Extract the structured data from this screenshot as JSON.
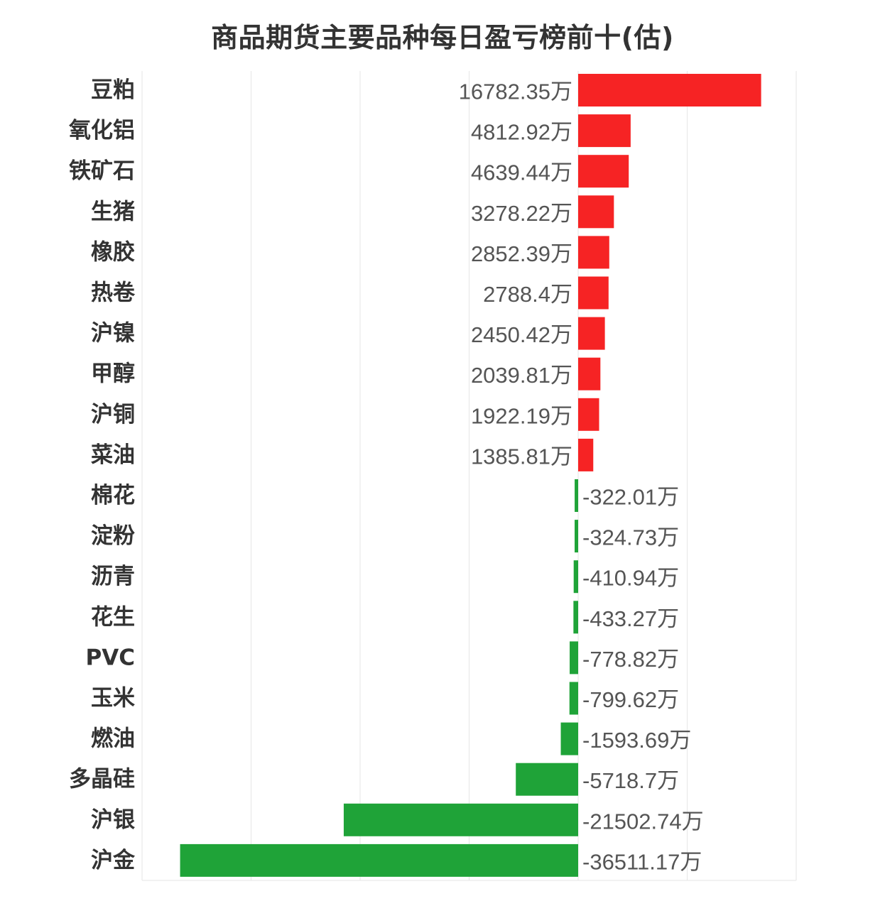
{
  "chart_data": {
    "type": "bar",
    "orientation": "horizontal",
    "title": "商品期货主要品种每日盈亏榜前十(估)",
    "unit": "万",
    "categories": [
      "豆粕",
      "氧化铝",
      "铁矿石",
      "生猪",
      "橡胶",
      "热卷",
      "沪镍",
      "甲醇",
      "沪铜",
      "菜油",
      "棉花",
      "淀粉",
      "沥青",
      "花生",
      "PVC",
      "玉米",
      "燃油",
      "多晶硅",
      "沪银",
      "沪金"
    ],
    "values": [
      16782.35,
      4812.92,
      4639.44,
      3278.22,
      2852.39,
      2788.4,
      2450.42,
      2039.81,
      1922.19,
      1385.81,
      -322.01,
      -324.73,
      -410.94,
      -433.27,
      -778.82,
      -799.62,
      -1593.69,
      -5718.7,
      -21502.74,
      -36511.17
    ],
    "value_labels": [
      "16782.35万",
      "4812.92万",
      "4639.44万",
      "3278.22万",
      "2852.39万",
      "2788.4万",
      "2450.42万",
      "2039.81万",
      "1922.19万",
      "1385.81万",
      "-322.01万",
      "-324.73万",
      "-410.94万",
      "-433.27万",
      "-778.82万",
      "-799.62万",
      "-1593.69万",
      "-5718.7万",
      "-21502.74万",
      "-36511.17万"
    ],
    "xlim": [
      -40000,
      20000
    ],
    "grid_x_values": [
      -40000,
      -30000,
      -20000,
      -10000,
      0,
      10000,
      20000
    ],
    "grid": true,
    "legend": false,
    "colors": {
      "positive": "#f62324",
      "negative": "#1fa338",
      "grid": "#e6e6e6"
    }
  }
}
